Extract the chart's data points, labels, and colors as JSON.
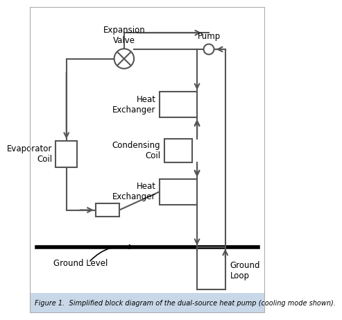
{
  "title": "Figure 1.  Simplified block diagram of the dual-source heat pump (cooling mode shown).",
  "background_color": "#ffffff",
  "border_color": "#aaaaaa",
  "line_color": "#555555",
  "box_color": "#cccccc",
  "ground_line_color": "#000000",
  "labels": {
    "expansion_valve": "Expansion\nValve",
    "pump": "Pump",
    "heat_exchanger_top": "Heat\nExchanger",
    "condensing_coil": "Condensing\nCoil",
    "heat_exchanger_bottom": "Heat\nExchanger",
    "evaporator_coil": "Evaporator\nCoil",
    "ground_level": "Ground Level",
    "ground_loop": "Ground\nLoop"
  }
}
